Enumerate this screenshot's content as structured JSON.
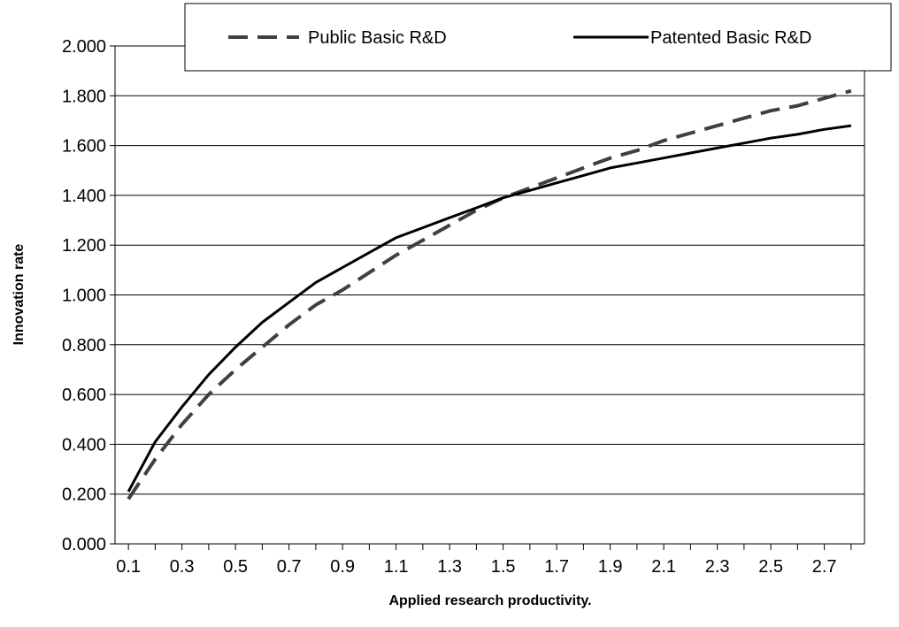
{
  "chart_data": {
    "type": "line",
    "title": "",
    "xlabel": "Applied research productivity.",
    "ylabel": "Innovation rate",
    "x": [
      0.1,
      0.2,
      0.3,
      0.4,
      0.5,
      0.6,
      0.7,
      0.8,
      0.9,
      1.0,
      1.1,
      1.2,
      1.3,
      1.4,
      1.5,
      1.6,
      1.7,
      1.8,
      1.9,
      2.0,
      2.1,
      2.2,
      2.3,
      2.4,
      2.5,
      2.6,
      2.7,
      2.8
    ],
    "xlim": [
      0.05,
      2.85
    ],
    "x_tick_labels": [
      "0.1",
      "0.3",
      "0.5",
      "0.7",
      "0.9",
      "1.1",
      "1.3",
      "1.5",
      "1.7",
      "1.9",
      "2.1",
      "2.3",
      "2.5",
      "2.7"
    ],
    "x_tick_values": [
      0.1,
      0.3,
      0.5,
      0.7,
      0.9,
      1.1,
      1.3,
      1.5,
      1.7,
      1.9,
      2.1,
      2.3,
      2.5,
      2.7
    ],
    "ylim": [
      0,
      2
    ],
    "y_tick_values": [
      0,
      0.2,
      0.4,
      0.6,
      0.8,
      1.0,
      1.2,
      1.4,
      1.6,
      1.8,
      2.0
    ],
    "y_tick_labels": [
      "0.000",
      "0.200",
      "0.400",
      "0.600",
      "0.800",
      "1.000",
      "1.200",
      "1.400",
      "1.600",
      "1.800",
      "2.000"
    ],
    "grid": "horizontal",
    "legend_position": "top-right",
    "series": [
      {
        "name": "Public Basic R&D",
        "style": "dashed",
        "color": "#404040",
        "values": [
          0.18,
          0.34,
          0.48,
          0.6,
          0.7,
          0.79,
          0.88,
          0.96,
          1.02,
          1.09,
          1.16,
          1.22,
          1.28,
          1.34,
          1.39,
          1.43,
          1.47,
          1.51,
          1.55,
          1.58,
          1.62,
          1.65,
          1.68,
          1.71,
          1.74,
          1.76,
          1.79,
          1.82
        ]
      },
      {
        "name": "Patented Basic R&D",
        "style": "solid",
        "color": "#000000",
        "values": [
          0.21,
          0.41,
          0.55,
          0.68,
          0.79,
          0.89,
          0.97,
          1.05,
          1.11,
          1.17,
          1.23,
          1.27,
          1.31,
          1.35,
          1.39,
          1.42,
          1.45,
          1.48,
          1.51,
          1.53,
          1.55,
          1.57,
          1.59,
          1.61,
          1.63,
          1.645,
          1.665,
          1.68
        ]
      }
    ]
  }
}
